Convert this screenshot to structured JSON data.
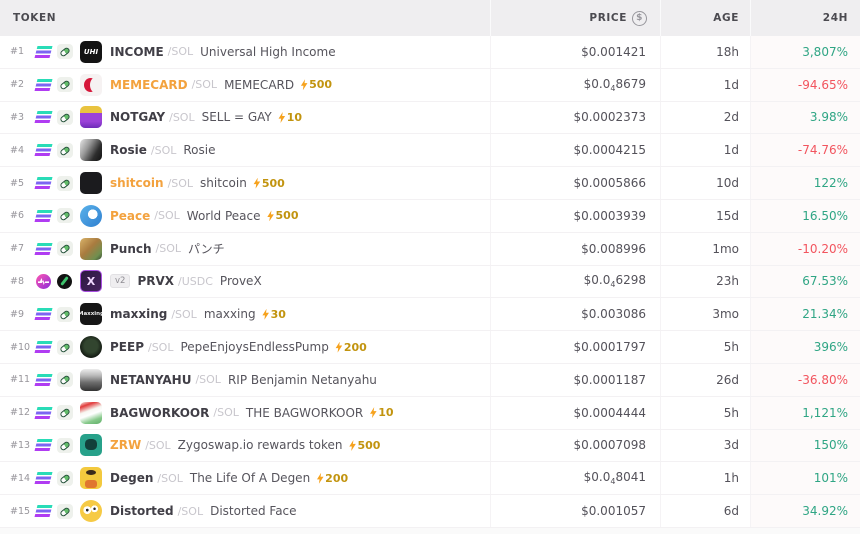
{
  "header": {
    "token_label": "TOKEN",
    "price_label": "PRICE",
    "price_icon": "dollar-circle-icon",
    "age_label": "AGE",
    "change_label": "24H"
  },
  "colors": {
    "up_green": "#2fa584",
    "down_red": "#f2545e",
    "boosted_symbol_orange": "#f3a23e",
    "boost_gold": "#c2940f",
    "header_bg": "#efeef0"
  },
  "rows": [
    {
      "rank": "#1",
      "chain_icons": [
        "solana-icon",
        "pump-icon"
      ],
      "icon": "uhi",
      "icon_round": false,
      "icon_label": "UHI",
      "version_badge": null,
      "symbol": "INCOME",
      "symbol_highlight": false,
      "pair": "/SOL",
      "name": "Universal High Income",
      "boost": null,
      "price_prefix": "$0.001421",
      "price_sub": "",
      "price_tail": "",
      "age": "18h",
      "change": "3,807%",
      "change_dir": "up"
    },
    {
      "rank": "#2",
      "chain_icons": [
        "solana-icon",
        "pump-icon"
      ],
      "icon": "memecard",
      "icon_round": false,
      "icon_label": "",
      "version_badge": null,
      "symbol": "MEMECARD",
      "symbol_highlight": true,
      "pair": "/SOL",
      "name": "MEMECARD",
      "boost": "500",
      "price_prefix": "$0.0",
      "price_sub": "4",
      "price_tail": "8679",
      "age": "1d",
      "change": "-94.65%",
      "change_dir": "down"
    },
    {
      "rank": "#3",
      "chain_icons": [
        "solana-icon",
        "pump-icon"
      ],
      "icon": "notgay",
      "icon_round": false,
      "icon_label": "",
      "version_badge": null,
      "symbol": "NOTGAY",
      "symbol_highlight": false,
      "pair": "/SOL",
      "name": "SELL = GAY",
      "boost": "10",
      "price_prefix": "$0.0002373",
      "price_sub": "",
      "price_tail": "",
      "age": "2d",
      "change": "3.98%",
      "change_dir": "up"
    },
    {
      "rank": "#4",
      "chain_icons": [
        "solana-icon",
        "pump-icon"
      ],
      "icon": "rosie",
      "icon_round": false,
      "icon_label": "",
      "version_badge": null,
      "symbol": "Rosie",
      "symbol_highlight": false,
      "pair": "/SOL",
      "name": "Rosie",
      "boost": null,
      "price_prefix": "$0.0004215",
      "price_sub": "",
      "price_tail": "",
      "age": "1d",
      "change": "-74.76%",
      "change_dir": "down"
    },
    {
      "rank": "#5",
      "chain_icons": [
        "solana-icon",
        "pump-icon"
      ],
      "icon": "shitcoin",
      "icon_round": false,
      "icon_label": "",
      "version_badge": null,
      "symbol": "shitcoin",
      "symbol_highlight": true,
      "pair": "/SOL",
      "name": "shitcoin",
      "boost": "500",
      "price_prefix": "$0.0005866",
      "price_sub": "",
      "price_tail": "",
      "age": "10d",
      "change": "122%",
      "change_dir": "up"
    },
    {
      "rank": "#6",
      "chain_icons": [
        "solana-icon",
        "pump-icon"
      ],
      "icon": "peace",
      "icon_round": true,
      "icon_label": "",
      "version_badge": null,
      "symbol": "Peace",
      "symbol_highlight": true,
      "pair": "/SOL",
      "name": "World Peace",
      "boost": "500",
      "price_prefix": "$0.0003939",
      "price_sub": "",
      "price_tail": "",
      "age": "15d",
      "change": "16.50%",
      "change_dir": "up"
    },
    {
      "rank": "#7",
      "chain_icons": [
        "solana-icon",
        "pump-icon"
      ],
      "icon": "punch",
      "icon_round": false,
      "icon_label": "",
      "version_badge": null,
      "symbol": "Punch",
      "symbol_highlight": false,
      "pair": "/SOL",
      "name": "パンチ",
      "boost": null,
      "price_prefix": "$0.008996",
      "price_sub": "",
      "price_tail": "",
      "age": "1mo",
      "change": "-10.20%",
      "change_dir": "down"
    },
    {
      "rank": "#8",
      "chain_icons": [
        "pulse-icon",
        "slash-icon"
      ],
      "icon": "prvx",
      "icon_round": false,
      "icon_label": "X",
      "version_badge": "v2",
      "symbol": "PRVX",
      "symbol_highlight": false,
      "pair": "/USDC",
      "name": "ProveX",
      "boost": null,
      "price_prefix": "$0.0",
      "price_sub": "4",
      "price_tail": "6298",
      "age": "23h",
      "change": "67.53%",
      "change_dir": "up"
    },
    {
      "rank": "#9",
      "chain_icons": [
        "solana-icon",
        "pump-icon"
      ],
      "icon": "maxxing",
      "icon_round": false,
      "icon_label": "Maxxing",
      "version_badge": null,
      "symbol": "maxxing",
      "symbol_highlight": false,
      "pair": "/SOL",
      "name": "maxxing",
      "boost": "30",
      "price_prefix": "$0.003086",
      "price_sub": "",
      "price_tail": "",
      "age": "3mo",
      "change": "21.34%",
      "change_dir": "up"
    },
    {
      "rank": "#10",
      "chain_icons": [
        "solana-icon",
        "pump-icon"
      ],
      "icon": "peep",
      "icon_round": true,
      "icon_label": "",
      "version_badge": null,
      "symbol": "PEEP",
      "symbol_highlight": false,
      "pair": "/SOL",
      "name": "PepeEnjoysEndlessPump",
      "boost": "200",
      "price_prefix": "$0.0001797",
      "price_sub": "",
      "price_tail": "",
      "age": "5h",
      "change": "396%",
      "change_dir": "up"
    },
    {
      "rank": "#11",
      "chain_icons": [
        "solana-icon",
        "pump-icon"
      ],
      "icon": "netanyahu",
      "icon_round": false,
      "icon_label": "",
      "version_badge": null,
      "symbol": "NETANYAHU",
      "symbol_highlight": false,
      "pair": "/SOL",
      "name": "RIP Benjamin Netanyahu",
      "boost": null,
      "price_prefix": "$0.0001187",
      "price_sub": "",
      "price_tail": "",
      "age": "26d",
      "change": "-36.80%",
      "change_dir": "down"
    },
    {
      "rank": "#12",
      "chain_icons": [
        "solana-icon",
        "pump-icon"
      ],
      "icon": "bagworkoor",
      "icon_round": false,
      "icon_label": "",
      "version_badge": null,
      "symbol": "BAGWORKOOR",
      "symbol_highlight": false,
      "pair": "/SOL",
      "name": "THE BAGWORKOOR",
      "boost": "10",
      "price_prefix": "$0.0004444",
      "price_sub": "",
      "price_tail": "",
      "age": "5h",
      "change": "1,121%",
      "change_dir": "up"
    },
    {
      "rank": "#13",
      "chain_icons": [
        "solana-icon",
        "pump-icon"
      ],
      "icon": "zrw",
      "icon_round": false,
      "icon_label": "",
      "version_badge": null,
      "symbol": "ZRW",
      "symbol_highlight": true,
      "pair": "/SOL",
      "name": "Zygoswap.io rewards token",
      "boost": "500",
      "price_prefix": "$0.0007098",
      "price_sub": "",
      "price_tail": "",
      "age": "3d",
      "change": "150%",
      "change_dir": "up"
    },
    {
      "rank": "#14",
      "chain_icons": [
        "solana-icon",
        "pump-icon"
      ],
      "icon": "degen",
      "icon_round": false,
      "icon_label": "",
      "version_badge": null,
      "symbol": "Degen",
      "symbol_highlight": false,
      "pair": "/SOL",
      "name": "The Life Of A Degen",
      "boost": "200",
      "price_prefix": "$0.0",
      "price_sub": "4",
      "price_tail": "8041",
      "age": "1h",
      "change": "101%",
      "change_dir": "up"
    },
    {
      "rank": "#15",
      "chain_icons": [
        "solana-icon",
        "pump-icon"
      ],
      "icon": "distorted",
      "icon_round": true,
      "icon_label": "",
      "version_badge": null,
      "symbol": "Distorted",
      "symbol_highlight": false,
      "pair": "/SOL",
      "name": "Distorted Face",
      "boost": null,
      "price_prefix": "$0.001057",
      "price_sub": "",
      "price_tail": "",
      "age": "6d",
      "change": "34.92%",
      "change_dir": "up"
    }
  ]
}
